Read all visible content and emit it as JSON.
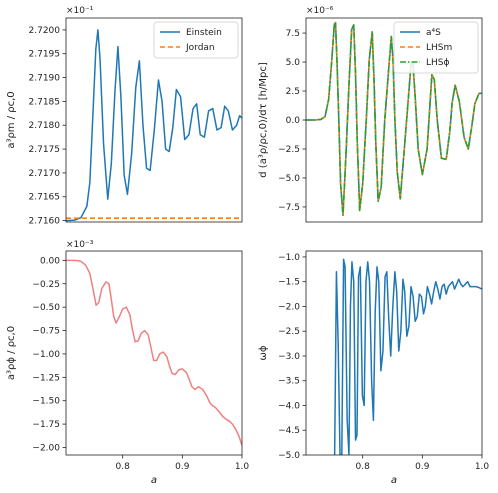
{
  "chart_data": [
    {
      "type": "line",
      "ylabel": "a³ρm / ρc,0",
      "xlabel": "",
      "offset_text": "×10⁻¹",
      "xlim": [
        0.705,
        1.0
      ],
      "ylim": [
        2.71597,
        2.72025
      ],
      "x_ticks": [],
      "y_ticks": [
        2.716,
        2.7165,
        2.717,
        2.7175,
        2.718,
        2.7185,
        2.719,
        2.7195,
        2.72
      ],
      "y_tick_labels": [
        "2.7160",
        "2.7165",
        "2.7170",
        "2.7175",
        "2.7180",
        "2.7185",
        "2.7190",
        "2.7195",
        "2.7200"
      ],
      "legend_position": "upper right",
      "series": [
        {
          "name": "Einstein",
          "color": "#1f77b4",
          "style": "solid",
          "x": [
            0.705,
            0.72,
            0.73,
            0.74,
            0.745,
            0.75,
            0.755,
            0.7585,
            0.762,
            0.768,
            0.775,
            0.781,
            0.787,
            0.792,
            0.797,
            0.8025,
            0.808,
            0.815,
            0.822,
            0.828,
            0.834,
            0.84,
            0.846,
            0.853,
            0.86,
            0.866,
            0.872,
            0.878,
            0.884,
            0.89,
            0.897,
            0.904,
            0.911,
            0.918,
            0.924,
            0.93,
            0.937,
            0.944,
            0.951,
            0.958,
            0.965,
            0.971,
            0.977,
            0.984,
            0.991,
            0.996,
            1.0
          ],
          "y": [
            2.716,
            2.71601,
            2.71606,
            2.7163,
            2.7168,
            2.7182,
            2.7196,
            2.72,
            2.7194,
            2.7176,
            2.71645,
            2.7172,
            2.7187,
            2.71965,
            2.7186,
            2.71695,
            2.71655,
            2.7174,
            2.7188,
            2.71935,
            2.718,
            2.7171,
            2.71705,
            2.7179,
            2.71895,
            2.7185,
            2.7175,
            2.71745,
            2.71795,
            2.71875,
            2.7186,
            2.7177,
            2.7178,
            2.71835,
            2.71845,
            2.7178,
            2.71775,
            2.7183,
            2.71835,
            2.7179,
            2.71795,
            2.7184,
            2.7183,
            2.7179,
            2.718,
            2.7182,
            2.71815
          ]
        },
        {
          "name": "Jordan",
          "color": "#ff7f0e",
          "style": "dashed",
          "x": [
            0.705,
            1.0
          ],
          "y": [
            2.71605,
            2.71605
          ]
        }
      ]
    },
    {
      "type": "line",
      "ylabel": "d (a³ρ/ρc,0)/dτ  [h/Mpc]",
      "xlabel": "",
      "offset_text": "×10⁻⁶",
      "xlim": [
        0.705,
        1.0
      ],
      "ylim": [
        -8.8,
        8.8
      ],
      "x_ticks": [],
      "y_ticks": [
        -7.5,
        -5.0,
        -2.5,
        0.0,
        2.5,
        5.0,
        7.5
      ],
      "y_tick_labels": [
        "−7.5",
        "−5.0",
        "−2.5",
        "0.0",
        "2.5",
        "5.0",
        "7.5"
      ],
      "legend_position": "upper right",
      "series": [
        {
          "name": "a⁴S",
          "color": "#1f77b4",
          "style": "solid",
          "x": [
            0.705,
            0.72,
            0.73,
            0.737,
            0.743,
            0.748,
            0.7525,
            0.7545,
            0.757,
            0.76,
            0.763,
            0.767,
            0.772,
            0.777,
            0.7815,
            0.785,
            0.788,
            0.791,
            0.795,
            0.8,
            0.806,
            0.811,
            0.816,
            0.819,
            0.822,
            0.826,
            0.831,
            0.837,
            0.843,
            0.848,
            0.851,
            0.854,
            0.858,
            0.863,
            0.869,
            0.876,
            0.881,
            0.884,
            0.888,
            0.893,
            0.9,
            0.908,
            0.913,
            0.916,
            0.92,
            0.925,
            0.932,
            0.94,
            0.946,
            0.95,
            0.955,
            0.962,
            0.97,
            0.977,
            0.983,
            0.988,
            0.995,
            1.0
          ],
          "y": [
            0.0,
            0.0,
            0.05,
            0.3,
            1.8,
            5.0,
            8.3,
            8.4,
            5.0,
            0.0,
            -5.5,
            -8.2,
            -3.0,
            3.0,
            7.8,
            8.2,
            4.0,
            -2.0,
            -7.8,
            -5.5,
            0.0,
            5.2,
            7.6,
            3.5,
            -2.0,
            -7.0,
            -5.8,
            0.0,
            4.0,
            7.2,
            5.0,
            0.0,
            -4.5,
            -6.8,
            -3.0,
            1.5,
            4.8,
            5.0,
            2.0,
            -2.5,
            -4.7,
            -2.5,
            1.5,
            3.9,
            3.5,
            0.0,
            -3.3,
            -3.4,
            -1.0,
            1.5,
            3.0,
            1.6,
            -1.5,
            -2.5,
            -0.5,
            1.4,
            2.3,
            2.3
          ]
        },
        {
          "name": "LHSm",
          "color": "#ff7f0e",
          "style": "dashed",
          "same_as": "a⁴S"
        },
        {
          "name": "LHSϕ",
          "color": "#2ca02c",
          "style": "dashdot",
          "same_as": "a⁴S"
        }
      ]
    },
    {
      "type": "line",
      "ylabel": "a³ρϕ / ρc,0",
      "xlabel": "a",
      "offset_text": "×10⁻³",
      "xlim": [
        0.705,
        1.0
      ],
      "ylim": [
        -2.08,
        0.1
      ],
      "x_ticks": [
        0.8,
        0.9,
        1.0
      ],
      "x_tick_labels": [
        "0.8",
        "0.9",
        "1.0"
      ],
      "y_ticks": [
        -2.0,
        -1.75,
        -1.5,
        -1.25,
        -1.0,
        -0.75,
        -0.5,
        -0.25,
        0.0
      ],
      "y_tick_labels": [
        "−2.00",
        "−1.75",
        "−1.50",
        "−1.25",
        "−1.00",
        "−0.75",
        "−0.50",
        "−0.25",
        "0.00"
      ],
      "series": [
        {
          "name": "",
          "color": "#f08080",
          "style": "solid",
          "x": [
            0.705,
            0.72,
            0.73,
            0.738,
            0.745,
            0.75,
            0.7555,
            0.76,
            0.765,
            0.772,
            0.777,
            0.781,
            0.785,
            0.789,
            0.7945,
            0.8,
            0.806,
            0.812,
            0.817,
            0.821,
            0.826,
            0.831,
            0.837,
            0.843,
            0.848,
            0.852,
            0.857,
            0.862,
            0.868,
            0.874,
            0.879,
            0.883,
            0.888,
            0.894,
            0.9,
            0.907,
            0.912,
            0.916,
            0.921,
            0.927,
            0.934,
            0.941,
            0.946,
            0.95,
            0.955,
            0.962,
            0.968,
            0.974,
            0.979,
            0.984,
            0.989,
            0.995,
            1.0
          ],
          "y": [
            0.0,
            0.0,
            -0.01,
            -0.05,
            -0.14,
            -0.3,
            -0.48,
            -0.45,
            -0.3,
            -0.23,
            -0.25,
            -0.42,
            -0.6,
            -0.67,
            -0.6,
            -0.52,
            -0.5,
            -0.58,
            -0.76,
            -0.87,
            -0.86,
            -0.78,
            -0.75,
            -0.8,
            -0.95,
            -1.07,
            -1.07,
            -1.0,
            -0.98,
            -1.03,
            -1.14,
            -1.21,
            -1.22,
            -1.17,
            -1.16,
            -1.2,
            -1.28,
            -1.35,
            -1.38,
            -1.35,
            -1.38,
            -1.45,
            -1.52,
            -1.55,
            -1.57,
            -1.62,
            -1.67,
            -1.7,
            -1.72,
            -1.75,
            -1.8,
            -1.88,
            -1.98
          ]
        }
      ]
    },
    {
      "type": "line",
      "ylabel": "ωϕ",
      "xlabel": "a",
      "offset_text": "",
      "xlim": [
        0.705,
        1.0
      ],
      "ylim": [
        -5.0,
        -0.88
      ],
      "x_ticks": [
        0.8,
        0.9,
        1.0
      ],
      "x_tick_labels": [
        "0.8",
        "0.9",
        "1.0"
      ],
      "y_ticks": [
        -5.0,
        -4.5,
        -4.0,
        -3.5,
        -3.0,
        -2.5,
        -2.0,
        -1.5,
        -1.0
      ],
      "y_tick_labels": [
        "−5.0",
        "−4.5",
        "−4.0",
        "−3.5",
        "−3.0",
        "−2.5",
        "−2.0",
        "−1.5",
        "−1.0"
      ],
      "series": [
        {
          "name": "",
          "color": "#1f77b4",
          "style": "solid",
          "x": [
            0.753,
            0.756,
            0.759,
            0.762,
            0.765,
            0.768,
            0.7705,
            0.774,
            0.777,
            0.7795,
            0.782,
            0.785,
            0.788,
            0.7905,
            0.793,
            0.796,
            0.7995,
            0.8025,
            0.8055,
            0.8085,
            0.8115,
            0.815,
            0.818,
            0.821,
            0.824,
            0.827,
            0.8305,
            0.834,
            0.8375,
            0.8405,
            0.8435,
            0.847,
            0.8505,
            0.854,
            0.857,
            0.8605,
            0.864,
            0.8675,
            0.8705,
            0.874,
            0.8775,
            0.881,
            0.8845,
            0.888,
            0.8915,
            0.895,
            0.8985,
            0.902,
            0.905,
            0.9085,
            0.912,
            0.9155,
            0.919,
            0.9225,
            0.926,
            0.9295,
            0.933,
            0.9365,
            0.94,
            0.9435,
            0.947,
            0.9505,
            0.954,
            0.9575,
            0.961,
            0.9645,
            0.968,
            0.972,
            0.976,
            0.98,
            0.985,
            0.99,
            0.995,
            1.0
          ],
          "y": [
            -5.0,
            -1.3,
            -2.8,
            -5.0,
            -5.0,
            -1.05,
            -1.2,
            -4.3,
            -5.0,
            -2.0,
            -1.1,
            -1.5,
            -4.7,
            -4.6,
            -1.4,
            -1.2,
            -3.8,
            -4.0,
            -1.5,
            -1.1,
            -1.5,
            -3.5,
            -4.3,
            -2.1,
            -1.2,
            -1.5,
            -3.3,
            -2.9,
            -1.4,
            -1.3,
            -2.2,
            -3.0,
            -2.0,
            -1.3,
            -1.7,
            -2.9,
            -2.5,
            -1.45,
            -1.7,
            -2.6,
            -2.4,
            -1.6,
            -1.8,
            -2.3,
            -2.2,
            -1.75,
            -1.8,
            -2.15,
            -2.0,
            -1.6,
            -1.75,
            -1.95,
            -1.7,
            -1.5,
            -1.65,
            -1.85,
            -1.6,
            -1.55,
            -1.75,
            -1.6,
            -1.55,
            -1.5,
            -1.65,
            -1.55,
            -1.45,
            -1.55,
            -1.6,
            -1.55,
            -1.5,
            -1.6,
            -1.6,
            -1.6,
            -1.62,
            -1.65
          ]
        }
      ]
    }
  ]
}
